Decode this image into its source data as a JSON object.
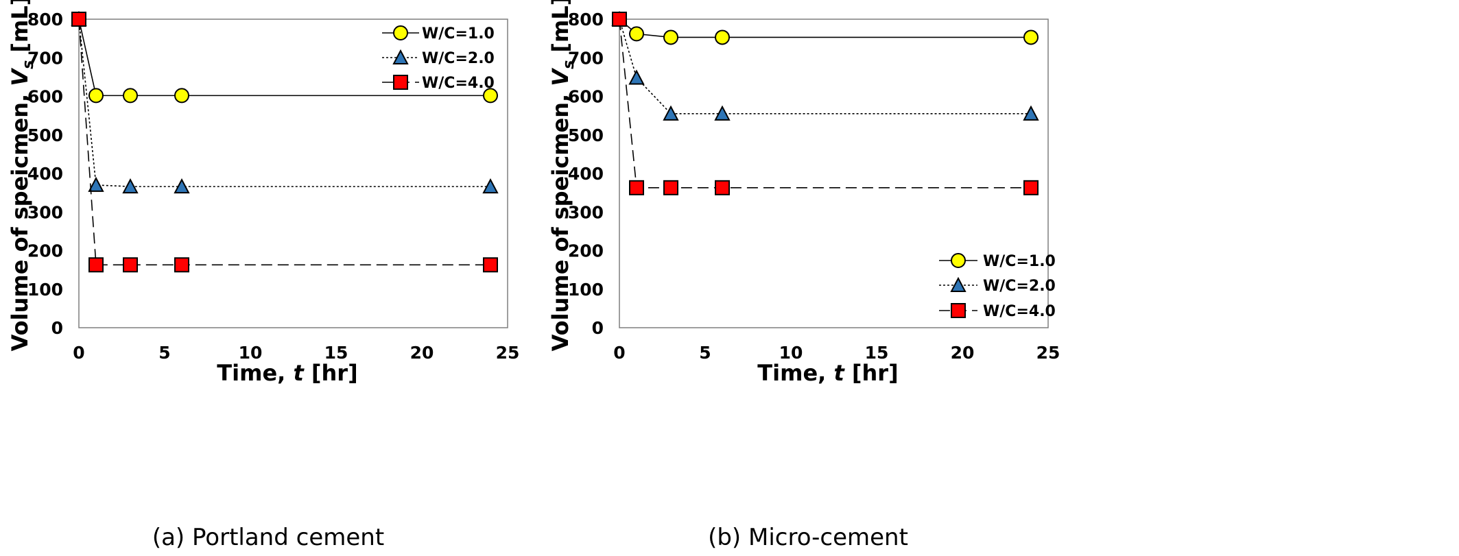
{
  "chart_data": [
    {
      "type": "line",
      "caption": "(a) Portland cement",
      "xlabel": "Time, ",
      "xlabel_var": "t",
      "xlabel_unit": " [hr]",
      "ylabel": "Volume of speicmen, ",
      "ylabel_var": "V",
      "ylabel_sub": "s",
      "ylabel_unit": " [mL]",
      "xlim": [
        0,
        25
      ],
      "ylim": [
        0,
        800
      ],
      "xticks": [
        "0",
        "5",
        "10",
        "15",
        "20",
        "25"
      ],
      "yticks": [
        "0",
        "100",
        "200",
        "300",
        "400",
        "500",
        "600",
        "700",
        "800"
      ],
      "legend_position": "top-right",
      "series": [
        {
          "name": "W/C=1.0",
          "marker": "circle",
          "line": "solid",
          "color": "#ffff00",
          "x": [
            0,
            1,
            3,
            6,
            24
          ],
          "y": [
            800,
            602,
            602,
            602,
            602
          ]
        },
        {
          "name": "W/C=2.0",
          "marker": "triangle",
          "line": "dotted",
          "color": "#2e75b6",
          "x": [
            0,
            1,
            3,
            6,
            24
          ],
          "y": [
            800,
            370,
            366,
            366,
            366
          ]
        },
        {
          "name": "W/C=4.0",
          "marker": "square",
          "line": "dashed",
          "color": "#ff0000",
          "x": [
            0,
            1,
            3,
            6,
            24
          ],
          "y": [
            800,
            163,
            163,
            163,
            163
          ]
        }
      ]
    },
    {
      "type": "line",
      "caption": "(b) Micro-cement",
      "xlabel": "Time, ",
      "xlabel_var": "t",
      "xlabel_unit": " [hr]",
      "ylabel": "Volume of speicmen, ",
      "ylabel_var": "V",
      "ylabel_sub": "s",
      "ylabel_unit": " [mL]",
      "xlim": [
        0,
        25
      ],
      "ylim": [
        0,
        800
      ],
      "xticks": [
        "0",
        "5",
        "10",
        "15",
        "20",
        "25"
      ],
      "yticks": [
        "0",
        "100",
        "200",
        "300",
        "400",
        "500",
        "600",
        "700",
        "800"
      ],
      "legend_position": "bottom-right",
      "series": [
        {
          "name": "W/C=1.0",
          "marker": "circle",
          "line": "solid",
          "color": "#ffff00",
          "x": [
            0,
            1,
            3,
            6,
            24
          ],
          "y": [
            800,
            762,
            753,
            753,
            753
          ]
        },
        {
          "name": "W/C=2.0",
          "marker": "triangle",
          "line": "dotted",
          "color": "#2e75b6",
          "x": [
            0,
            1,
            3,
            6,
            24
          ],
          "y": [
            800,
            648,
            555,
            555,
            555
          ]
        },
        {
          "name": "W/C=4.0",
          "marker": "square",
          "line": "dashed",
          "color": "#ff0000",
          "x": [
            0,
            1,
            3,
            6,
            24
          ],
          "y": [
            800,
            363,
            363,
            363,
            363
          ]
        }
      ]
    }
  ]
}
